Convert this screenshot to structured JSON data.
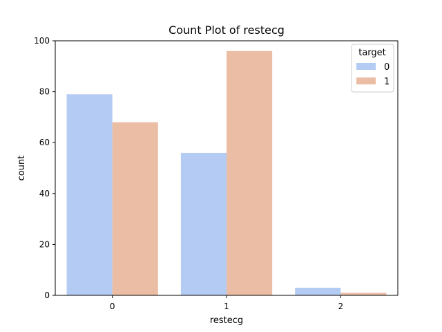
{
  "chart_data": {
    "type": "bar",
    "title": "Count Plot of restecg",
    "xlabel": "restecg",
    "ylabel": "count",
    "categories": [
      "0",
      "1",
      "2"
    ],
    "yticks": [
      0,
      20,
      40,
      60,
      80,
      100
    ],
    "ylim": [
      0,
      100
    ],
    "legend": {
      "title": "target",
      "placement": "top-right"
    },
    "series": [
      {
        "name": "0",
        "color": "#b4cbf3",
        "values": [
          79,
          56,
          3
        ]
      },
      {
        "name": "1",
        "color": "#ebbda5",
        "values": [
          68,
          96,
          1
        ]
      }
    ]
  }
}
